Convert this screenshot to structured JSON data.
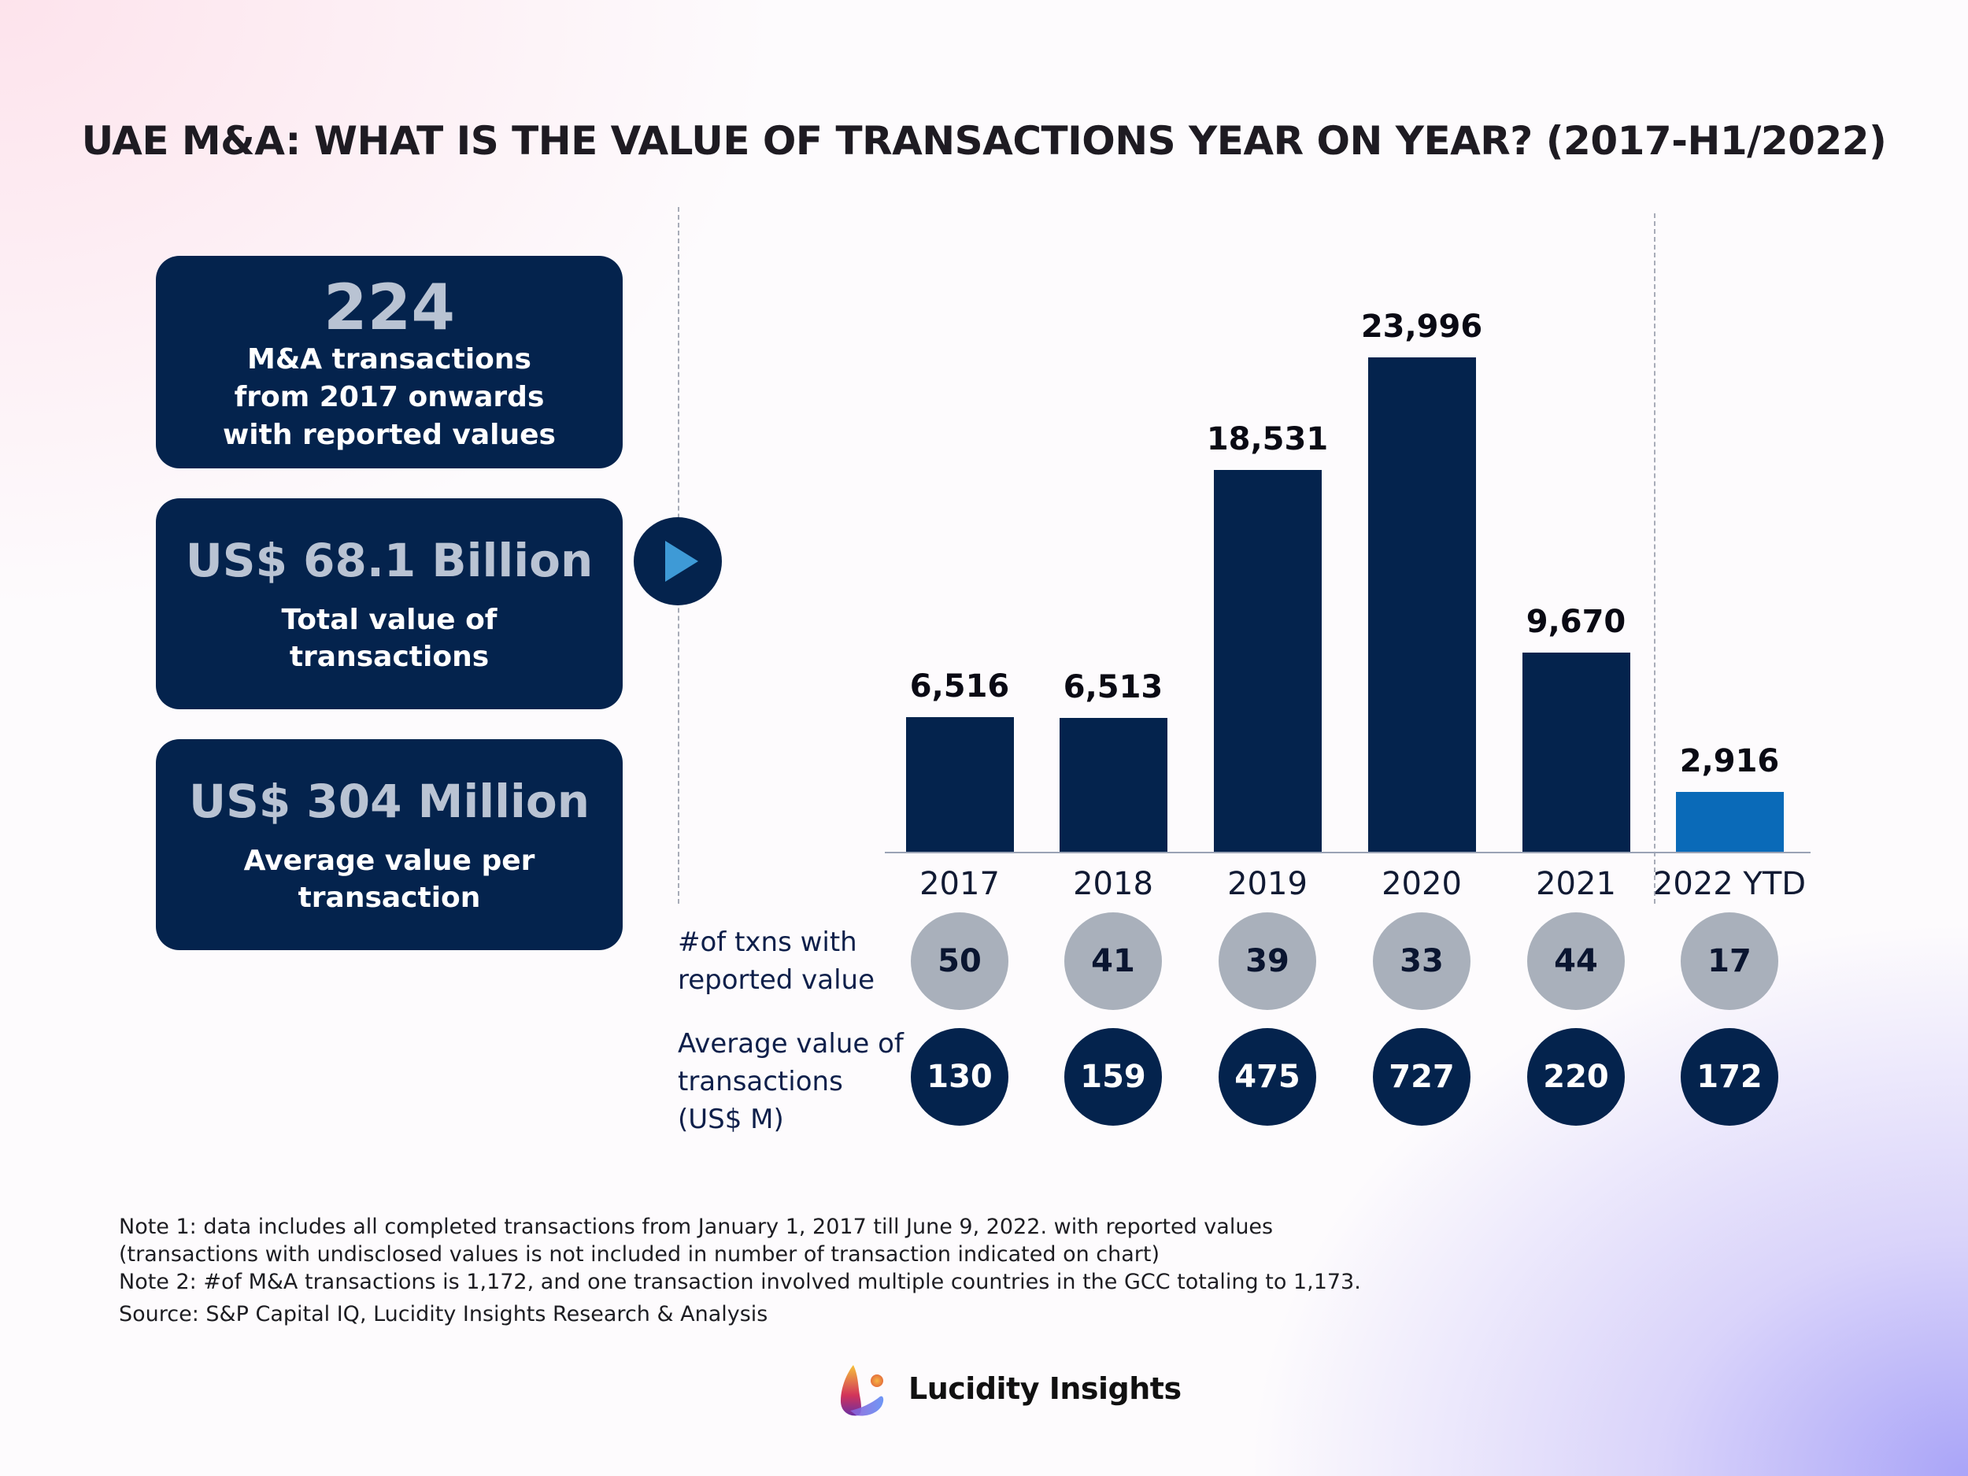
{
  "title": "UAE M&A: WHAT IS THE VALUE OF TRANSACTIONS YEAR ON YEAR? (2017-H1/2022)",
  "stats": [
    {
      "value": "224",
      "label_lines": [
        "M&A transactions",
        "from 2017 onwards",
        "with reported values"
      ]
    },
    {
      "value": "US$ 68.1 Billion",
      "label_lines": [
        "Total value of",
        "transactions"
      ]
    },
    {
      "value": "US$ 304 Million",
      "label_lines": [
        "Average value per",
        "transaction"
      ]
    }
  ],
  "chart_data": {
    "type": "bar",
    "title": "UAE M&A: WHAT IS THE VALUE OF TRANSACTIONS YEAR ON YEAR? (2017-H1/2022)",
    "categories": [
      "2017",
      "2018",
      "2019",
      "2020",
      "2021",
      "2022 YTD"
    ],
    "values": [
      6516,
      6513,
      18531,
      23996,
      9670,
      2916
    ],
    "value_labels": [
      "6,516",
      "6,513",
      "18,531",
      "23,996",
      "9,670",
      "2,916"
    ],
    "ylim": [
      0,
      24000
    ],
    "grid": false,
    "colors": {
      "bar": "#04234d",
      "highlight": "#0a6ab8",
      "highlight_category": "2022 YTD"
    }
  },
  "rows": [
    {
      "label_lines": [
        "#of txns with",
        "reported value"
      ],
      "values": [
        "50",
        "41",
        "39",
        "33",
        "44",
        "17"
      ]
    },
    {
      "label_lines": [
        "Average value of",
        "transactions",
        "(US$ M)"
      ],
      "values": [
        "130",
        "159",
        "475",
        "727",
        "220",
        "172"
      ]
    }
  ],
  "notes": [
    "Note 1: data includes all completed transactions from January 1, 2017 till June 9, 2022. with reported values",
    "(transactions with undisclosed values is not included in number of transaction indicated on chart)",
    "Note 2: #of M&A transactions is 1,172, and one transaction involved multiple countries in the GCC totaling to 1,173.",
    "Source: S&P Capital IQ, Lucidity Insights Research & Analysis"
  ],
  "brand": {
    "name": "Lucidity Insights"
  }
}
